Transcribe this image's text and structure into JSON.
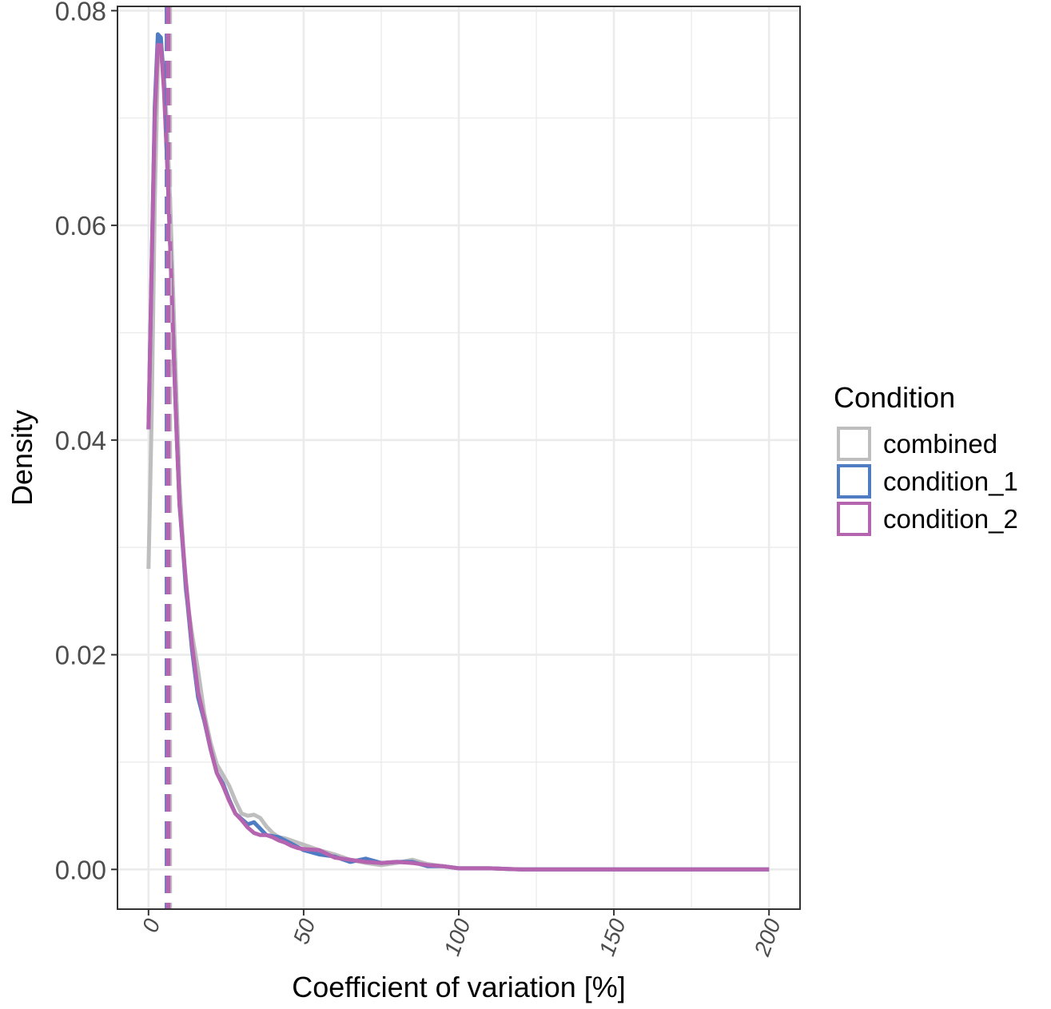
{
  "chart_data": {
    "type": "line",
    "title": "",
    "xlabel": "Coefficient of variation [%]",
    "ylabel": "Density",
    "xlim": [
      -10,
      210
    ],
    "ylim": [
      -0.0037,
      0.0804
    ],
    "x_ticks": [
      0,
      50,
      100,
      150,
      200
    ],
    "x_tick_labels": [
      "0",
      "50",
      "100",
      "150",
      "200"
    ],
    "y_ticks": [
      0.0,
      0.02,
      0.04,
      0.06,
      0.08
    ],
    "y_tick_labels": [
      "0.00",
      "0.02",
      "0.04",
      "0.06",
      "0.08"
    ],
    "grid": true,
    "legend": {
      "title": "Condition",
      "position": "right",
      "entries": [
        "combined",
        "condition_1",
        "condition_2"
      ]
    },
    "series": [
      {
        "name": "combined",
        "color": "#BEBEBE",
        "x": [
          0,
          1,
          2,
          3,
          4,
          5,
          6,
          7,
          8,
          9,
          10,
          12,
          14,
          16,
          18,
          20,
          22,
          24,
          26,
          28,
          30,
          32,
          34,
          36,
          38,
          40,
          42,
          44,
          46,
          48,
          50,
          55,
          60,
          65,
          70,
          75,
          80,
          85,
          90,
          95,
          100,
          110,
          120,
          150,
          200
        ],
        "values": [
          0.028,
          0.042,
          0.062,
          0.075,
          0.077,
          0.074,
          0.069,
          0.062,
          0.053,
          0.044,
          0.036,
          0.026,
          0.022,
          0.0185,
          0.0145,
          0.0118,
          0.0098,
          0.0088,
          0.0078,
          0.0064,
          0.0052,
          0.005,
          0.0051,
          0.0048,
          0.004,
          0.0034,
          0.003,
          0.0029,
          0.0027,
          0.0025,
          0.0023,
          0.0018,
          0.0014,
          0.0009,
          0.0006,
          0.0004,
          0.0006,
          0.0009,
          0.0005,
          0.0003,
          0.0001,
          0.0001,
          0.0,
          0.0,
          0.0
        ]
      },
      {
        "name": "condition_1",
        "color": "#4F7CC3",
        "x": [
          0,
          1,
          2,
          3,
          4,
          5,
          6,
          7,
          8,
          9,
          10,
          12,
          14,
          16,
          18,
          20,
          22,
          24,
          26,
          28,
          30,
          32,
          34,
          36,
          38,
          40,
          42,
          44,
          46,
          48,
          50,
          55,
          60,
          65,
          70,
          75,
          80,
          85,
          90,
          95,
          100,
          110,
          120,
          150,
          200
        ],
        "values": [
          0.041,
          0.056,
          0.071,
          0.0778,
          0.0775,
          0.073,
          0.066,
          0.058,
          0.049,
          0.041,
          0.034,
          0.0265,
          0.0205,
          0.016,
          0.0138,
          0.0112,
          0.009,
          0.008,
          0.0065,
          0.0052,
          0.0047,
          0.0042,
          0.0044,
          0.0038,
          0.0032,
          0.0031,
          0.003,
          0.0027,
          0.0024,
          0.0021,
          0.0018,
          0.0014,
          0.0012,
          0.0007,
          0.001,
          0.0006,
          0.0007,
          0.0007,
          0.0003,
          0.0003,
          0.0001,
          0.0001,
          0.0,
          0.0,
          0.0
        ]
      },
      {
        "name": "condition_2",
        "color": "#B565AF",
        "x": [
          0,
          1,
          2,
          3,
          4,
          5,
          6,
          7,
          8,
          9,
          10,
          12,
          14,
          16,
          18,
          20,
          22,
          24,
          26,
          28,
          30,
          32,
          34,
          36,
          38,
          40,
          42,
          44,
          46,
          48,
          50,
          55,
          60,
          65,
          70,
          75,
          80,
          85,
          90,
          95,
          100,
          110,
          120,
          150,
          200
        ],
        "values": [
          0.041,
          0.056,
          0.07,
          0.0768,
          0.0768,
          0.0725,
          0.066,
          0.058,
          0.049,
          0.041,
          0.034,
          0.027,
          0.021,
          0.0165,
          0.014,
          0.0112,
          0.009,
          0.0078,
          0.0064,
          0.0052,
          0.0046,
          0.0039,
          0.0034,
          0.0032,
          0.0032,
          0.003,
          0.0027,
          0.0025,
          0.0022,
          0.002,
          0.0019,
          0.0018,
          0.0011,
          0.0009,
          0.0007,
          0.0006,
          0.0007,
          0.0006,
          0.0004,
          0.0003,
          0.0001,
          0.0001,
          0.0,
          0.0,
          0.0
        ]
      }
    ],
    "vlines": [
      {
        "x": 6.8,
        "series": "combined",
        "style": "dashed"
      },
      {
        "x": 6.0,
        "series": "condition_1",
        "style": "dashed"
      },
      {
        "x": 6.3,
        "series": "condition_2",
        "style": "dashed"
      }
    ]
  }
}
